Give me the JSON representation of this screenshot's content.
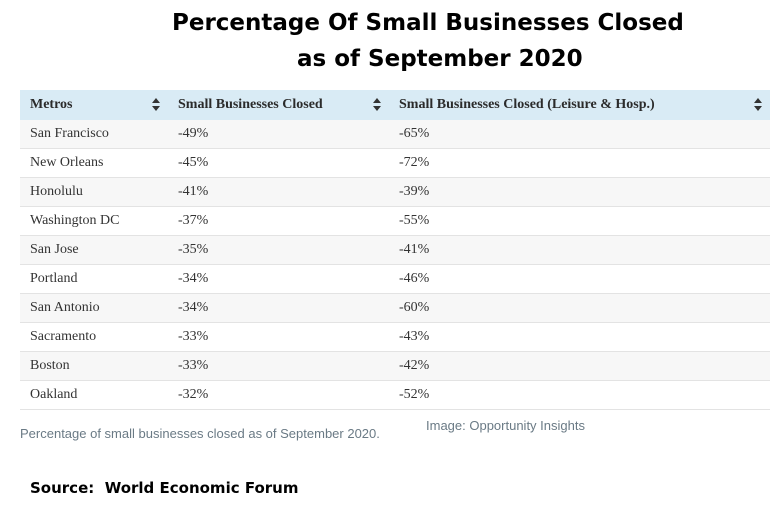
{
  "title": {
    "line1": "Percentage Of Small Businesses Closed",
    "line2": "as of September 2020"
  },
  "caption": "Percentage of small businesses closed as of September 2020.",
  "credit": "Image: Opportunity Insights",
  "source": "Source:  World Economic Forum",
  "chart_data": {
    "type": "table",
    "title": "Percentage Of Small Businesses Closed as of September 2020",
    "columns": [
      "Metros",
      "Small Businesses Closed",
      "Small Businesses Closed (Leisure & Hosp.)"
    ],
    "rows": [
      [
        "San Francisco",
        "-49%",
        "-65%"
      ],
      [
        "New Orleans",
        "-45%",
        "-72%"
      ],
      [
        "Honolulu",
        "-41%",
        "-39%"
      ],
      [
        "Washington DC",
        "-37%",
        "-55%"
      ],
      [
        "San Jose",
        "-35%",
        "-41%"
      ],
      [
        "Portland",
        "-34%",
        "-46%"
      ],
      [
        "San Antonio",
        "-34%",
        "-60%"
      ],
      [
        "Sacramento",
        "-33%",
        "-43%"
      ],
      [
        "Boston",
        "-33%",
        "-42%"
      ],
      [
        "Oakland",
        "-32%",
        "-52%"
      ]
    ]
  }
}
